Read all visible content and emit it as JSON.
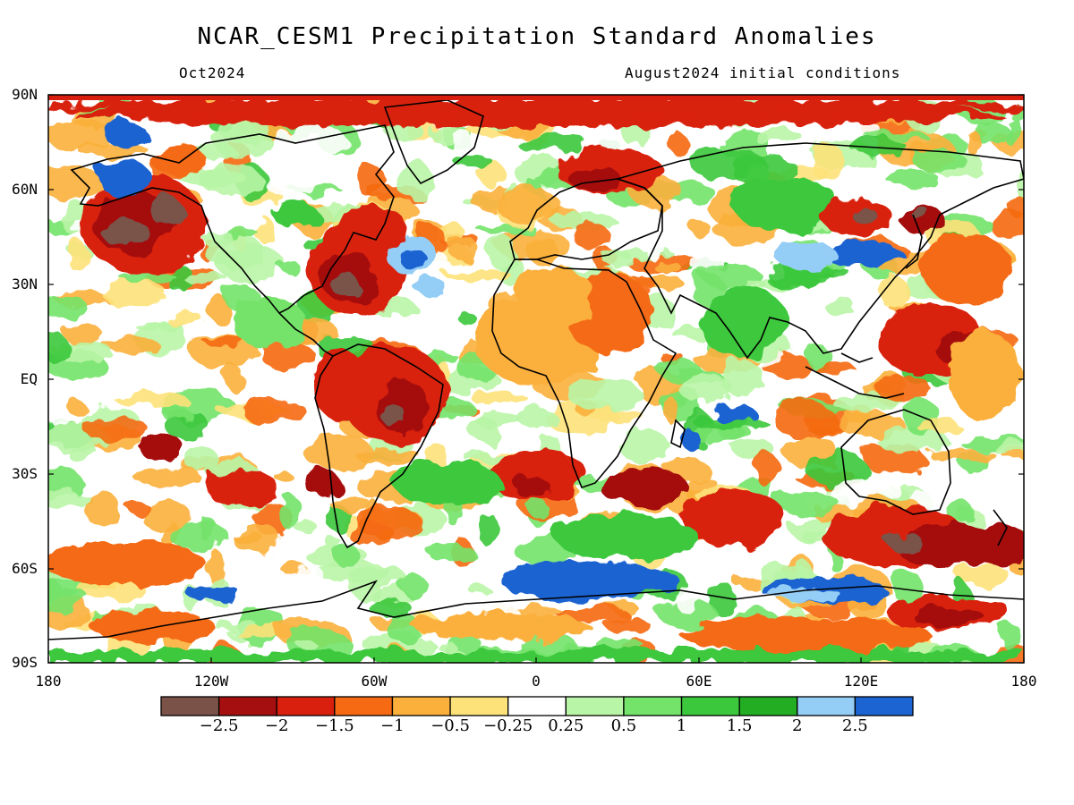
{
  "title": "NCAR_CESM1 Precipitation Standard Anomalies",
  "subtitle_left": "Oct2024",
  "subtitle_right": "August2024 initial conditions",
  "lat_labels": [
    "90N",
    "60N",
    "30N",
    "EQ",
    "30S",
    "60S",
    "90S"
  ],
  "lon_labels": [
    "180",
    "120W",
    "60W",
    "0",
    "60E",
    "120E",
    "180"
  ],
  "colorbar": {
    "colors": [
      "#7a5248",
      "#a50f0f",
      "#d9200e",
      "#f56a12",
      "#fbb03c",
      "#fde27a",
      "#ffffff",
      "#b9f5a6",
      "#74e36a",
      "#3cc83c",
      "#22ad22",
      "#94cdf5",
      "#1c64d2"
    ],
    "labels": [
      "−2.5",
      "−2",
      "−1.5",
      "−1",
      "−0.5",
      "−0.25",
      "0.25",
      "0.5",
      "1",
      "1.5",
      "2",
      "2.5"
    ]
  },
  "map_regions": [
    {
      "name": "arctic-north-band",
      "level": "-1.5"
    },
    {
      "name": "northeast-pacific-dry",
      "level": "-2.5"
    },
    {
      "name": "eastern-north-america-dry",
      "level": "-2.5"
    },
    {
      "name": "north-atlantic-wet",
      "level": "2.5"
    },
    {
      "name": "central-africa-dry",
      "level": "-0.5"
    },
    {
      "name": "amazon-dry",
      "level": "-2.5"
    },
    {
      "name": "east-siberia-dry",
      "level": "-2"
    },
    {
      "name": "east-asia-wet",
      "level": "2.5"
    },
    {
      "name": "southern-ocean-dry",
      "level": "-2"
    },
    {
      "name": "antarctic-wet",
      "level": "2.5"
    }
  ]
}
